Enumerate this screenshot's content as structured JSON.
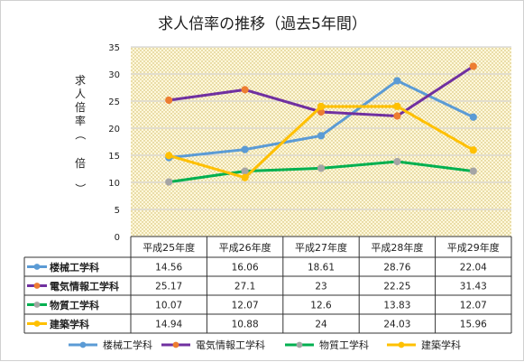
{
  "chart_data": {
    "type": "line",
    "title": "求人倍率の推移（過去5年間）",
    "ylabel": "求人倍率（倍）",
    "ylim": [
      0,
      35
    ],
    "yticks": [
      0,
      5,
      10,
      15,
      20,
      25,
      30,
      35
    ],
    "categories": [
      "平成25年度",
      "平成26年度",
      "平成27年度",
      "平成28年度",
      "平成29年度"
    ],
    "grid": true,
    "legend_position": "bottom",
    "plot_background": "dotted-yellow",
    "data_table": true,
    "series": [
      {
        "name": "楼械工学科",
        "values": [
          14.56,
          16.06,
          18.61,
          28.76,
          22.04
        ],
        "labels": [
          "14.56",
          "16.06",
          "18.61",
          "28.76",
          "22.04"
        ],
        "color": "#5b9bd5",
        "marker_color": "#5b9bd5"
      },
      {
        "name": "電気情報工学科",
        "values": [
          25.17,
          27.1,
          23,
          22.25,
          31.43
        ],
        "labels": [
          "25.17",
          "27.1",
          "23",
          "22.25",
          "31.43"
        ],
        "color": "#7030a0",
        "marker_color": "#ed7d31"
      },
      {
        "name": "物質工学科",
        "values": [
          10.07,
          12.07,
          12.6,
          13.83,
          12.07
        ],
        "labels": [
          "10.07",
          "12.07",
          "12.6",
          "13.83",
          "12.07"
        ],
        "color": "#00b050",
        "marker_color": "#a5a5a5"
      },
      {
        "name": "建築学科",
        "values": [
          14.94,
          10.88,
          24,
          24.03,
          15.96
        ],
        "labels": [
          "14.94",
          "10.88",
          "24",
          "24.03",
          "15.96"
        ],
        "color": "#ffc000",
        "marker_color": "#ffc000"
      }
    ]
  }
}
